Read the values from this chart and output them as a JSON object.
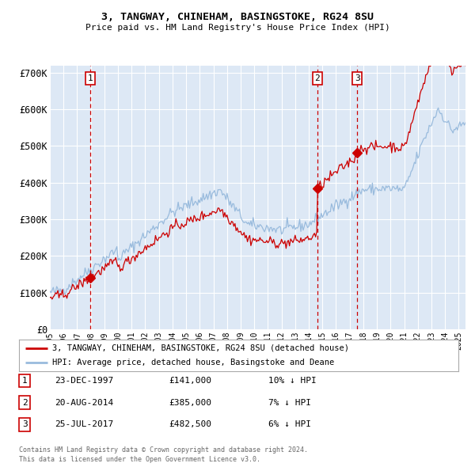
{
  "title": "3, TANGWAY, CHINEHAM, BASINGSTOKE, RG24 8SU",
  "subtitle": "Price paid vs. HM Land Registry's House Price Index (HPI)",
  "ylabel_ticks": [
    "£0",
    "£100K",
    "£200K",
    "£300K",
    "£400K",
    "£500K",
    "£600K",
    "£700K"
  ],
  "ytick_values": [
    0,
    100000,
    200000,
    300000,
    400000,
    500000,
    600000,
    700000
  ],
  "ylim": [
    0,
    720000
  ],
  "xlim_start": 1995.5,
  "xlim_end": 2025.5,
  "xtick_years": [
    1995,
    1996,
    1997,
    1998,
    1999,
    2000,
    2001,
    2002,
    2003,
    2004,
    2005,
    2006,
    2007,
    2008,
    2009,
    2010,
    2011,
    2012,
    2013,
    2014,
    2015,
    2016,
    2017,
    2018,
    2019,
    2020,
    2021,
    2022,
    2023,
    2024,
    2025
  ],
  "plot_bg": "#dde8f5",
  "grid_color": "#ffffff",
  "sale_color": "#cc0000",
  "hpi_color": "#99bbdd",
  "dashed_color": "#cc0000",
  "legend_sale": "3, TANGWAY, CHINEHAM, BASINGSTOKE, RG24 8SU (detached house)",
  "legend_hpi": "HPI: Average price, detached house, Basingstoke and Deane",
  "transactions": [
    {
      "num": 1,
      "date": "23-DEC-1997",
      "price": 141000,
      "pct": "10%",
      "dir": "↓",
      "year": 1997.97
    },
    {
      "num": 2,
      "date": "20-AUG-2014",
      "price": 385000,
      "pct": "7%",
      "dir": "↓",
      "year": 2014.63
    },
    {
      "num": 3,
      "date": "25-JUL-2017",
      "price": 482500,
      "pct": "6%",
      "dir": "↓",
      "year": 2017.56
    }
  ],
  "footnote1": "Contains HM Land Registry data © Crown copyright and database right 2024.",
  "footnote2": "This data is licensed under the Open Government Licence v3.0."
}
